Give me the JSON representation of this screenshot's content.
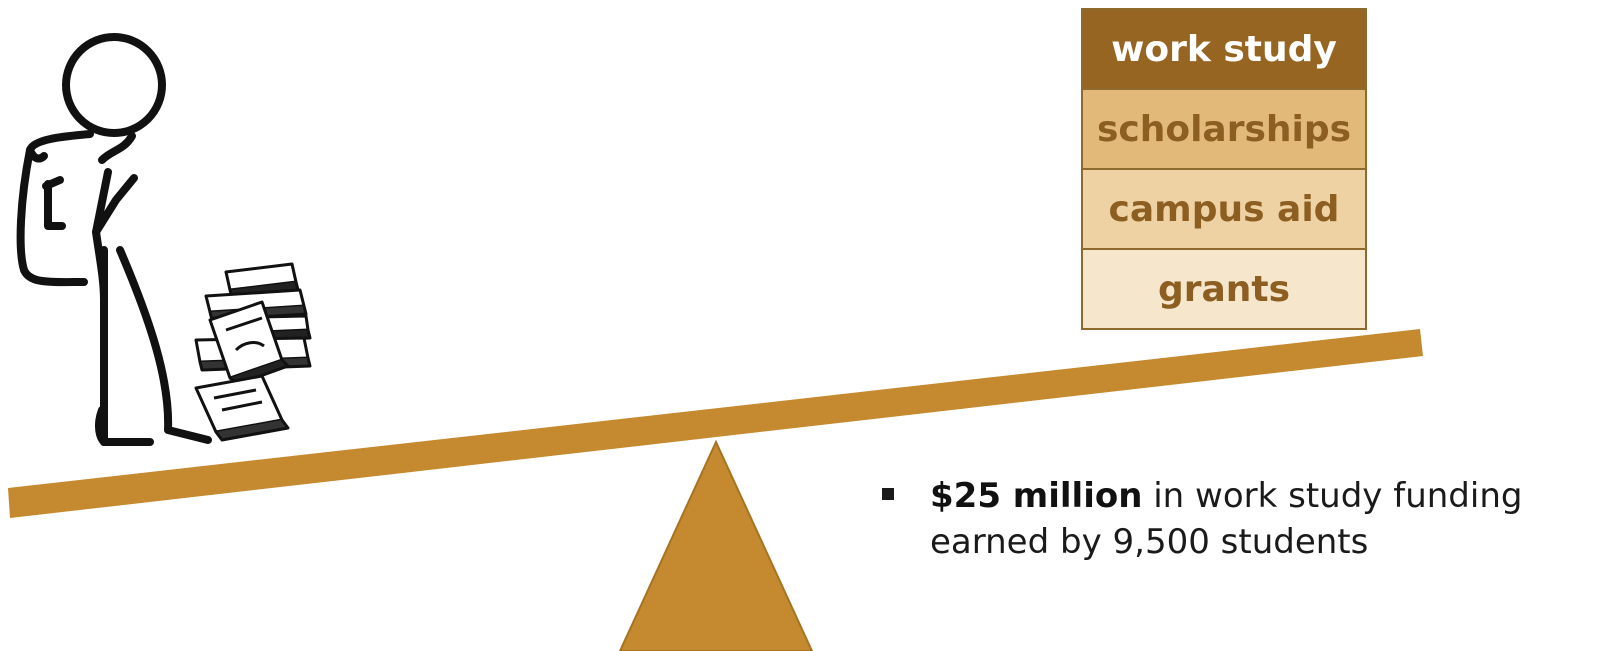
{
  "stack": {
    "items": [
      {
        "label": "work study",
        "bg": "#976522",
        "color": "#ffffff"
      },
      {
        "label": "scholarships",
        "bg": "#e3b97a",
        "color": "#8c5e21"
      },
      {
        "label": "campus aid",
        "bg": "#efd2a3",
        "color": "#8c5e21"
      },
      {
        "label": "grants",
        "bg": "#f6e6cc",
        "color": "#8c5e21"
      }
    ]
  },
  "bullet": {
    "strong": "$25 million",
    "rest": " in work study funding earned by 9,500 students"
  },
  "colors": {
    "plank": "#c5892f",
    "fulcrum": "#c5892f",
    "fulcrum_outline": "#a77320",
    "sketch_ink": "#111111"
  },
  "icons": {
    "figure": "stick-figure-student-icon",
    "books": "book-stack-icon"
  }
}
